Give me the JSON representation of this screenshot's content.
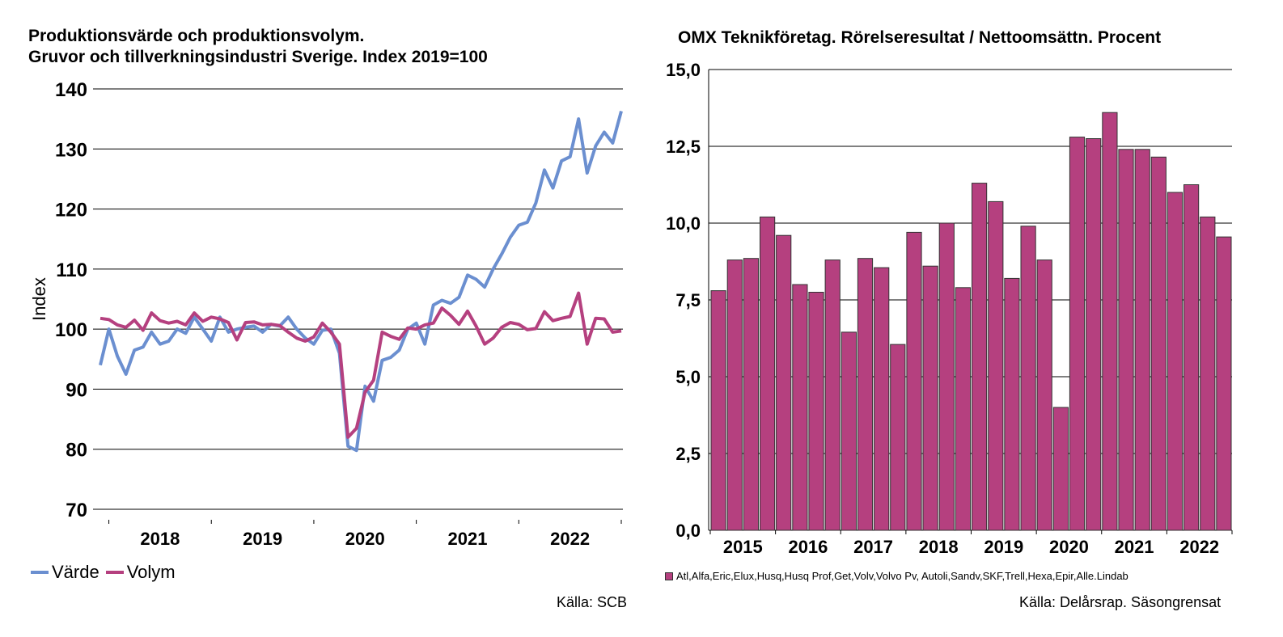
{
  "left": {
    "title_line1": "Produktionsvärde och produktionsvolym.",
    "title_line2": "Gruvor och tillverkningsindustri Sverige. Index 2019=100",
    "source": "Källa: SCB",
    "legend": [
      {
        "name": "Värde",
        "color": "#6b8fd0"
      },
      {
        "name": "Volym",
        "color": "#b5407f"
      }
    ]
  },
  "right": {
    "title": "OMX Teknikföretag. Rörelseresultat / Nettoomsättn. Procent",
    "source": "Källa: Delårsrap. Säsongrensat",
    "legend_label": "Atl,Alfa,Eric,Elux,Husq,Husq Prof,Get,Volv,Volvo Pv, Autoli,Sandv,SKF,Trell,Hexa,Epir,Alle.Lindab"
  },
  "chart_data": [
    {
      "type": "line",
      "ylabel": "Index",
      "ylim": [
        70,
        140
      ],
      "yticks": [
        70,
        80,
        90,
        100,
        110,
        120,
        130,
        140
      ],
      "x_labels": [
        "2018",
        "2019",
        "2020",
        "2021",
        "2022"
      ],
      "x_start": "2017-12",
      "frequency": "monthly",
      "grid": true,
      "legend_position": "bottom-left",
      "series": [
        {
          "name": "Värde",
          "color": "#6b8fd0",
          "values": [
            94.0,
            100.0,
            95.5,
            92.5,
            96.5,
            97.0,
            99.5,
            97.5,
            98.0,
            100.0,
            99.3,
            102.0,
            100.0,
            98.0,
            102.0,
            99.5,
            100.0,
            100.3,
            100.5,
            99.5,
            100.8,
            100.5,
            102.0,
            100.0,
            98.5,
            97.5,
            99.8,
            100.0,
            96.0,
            80.5,
            79.8,
            90.5,
            88.0,
            94.8,
            95.3,
            96.5,
            100.0,
            101.0,
            97.5,
            104.0,
            104.8,
            104.3,
            105.3,
            109.0,
            108.3,
            107.0,
            110.0,
            112.5,
            115.3,
            117.3,
            117.8,
            121.0,
            126.5,
            123.5,
            128.0,
            128.7,
            135.0,
            126.0,
            130.5,
            132.8,
            131.0,
            136.3
          ]
        },
        {
          "name": "Volym",
          "color": "#b5407f",
          "values": [
            101.8,
            101.6,
            100.7,
            100.3,
            101.5,
            99.8,
            102.7,
            101.4,
            101.0,
            101.3,
            100.7,
            102.7,
            101.3,
            102.0,
            101.7,
            101.1,
            98.2,
            101.1,
            101.2,
            100.7,
            100.8,
            100.6,
            99.5,
            98.5,
            98.0,
            98.7,
            101.0,
            99.5,
            97.5,
            82.0,
            83.5,
            89.5,
            91.5,
            99.5,
            98.8,
            98.3,
            100.2,
            100.0,
            100.7,
            101.0,
            103.5,
            102.3,
            100.8,
            103.0,
            100.5,
            97.5,
            98.5,
            100.3,
            101.1,
            100.8,
            99.9,
            100.1,
            102.9,
            101.4,
            101.8,
            102.1,
            106.0,
            97.5,
            101.8,
            101.7,
            99.5,
            99.7
          ]
        }
      ]
    },
    {
      "type": "bar",
      "ylim": [
        0,
        15
      ],
      "yticks": [
        "0,0",
        "2,5",
        "5,0",
        "7,5",
        "10,0",
        "12,5",
        "15,0"
      ],
      "x_labels": [
        "2015",
        "2016",
        "2017",
        "2018",
        "2019",
        "2020",
        "2021",
        "2022"
      ],
      "frequency": "quarterly",
      "grid": true,
      "legend_position": "bottom",
      "series": [
        {
          "name": "Atl,Alfa,Eric,Elux,Husq,Husq Prof,Get,Volv,Volvo Pv, Autoli,Sandv,SKF,Trell,Hexa,Epir,Alle.Lindab",
          "color": "#b5407f",
          "values": [
            7.8,
            8.8,
            8.85,
            10.2,
            9.6,
            8.0,
            7.75,
            8.8,
            6.45,
            8.85,
            8.55,
            6.05,
            9.7,
            8.6,
            10.0,
            7.9,
            11.3,
            10.7,
            8.2,
            9.9,
            8.8,
            4.0,
            12.8,
            12.75,
            13.6,
            12.4,
            12.4,
            12.15,
            11.0,
            11.25,
            10.2,
            9.55
          ]
        }
      ]
    }
  ]
}
